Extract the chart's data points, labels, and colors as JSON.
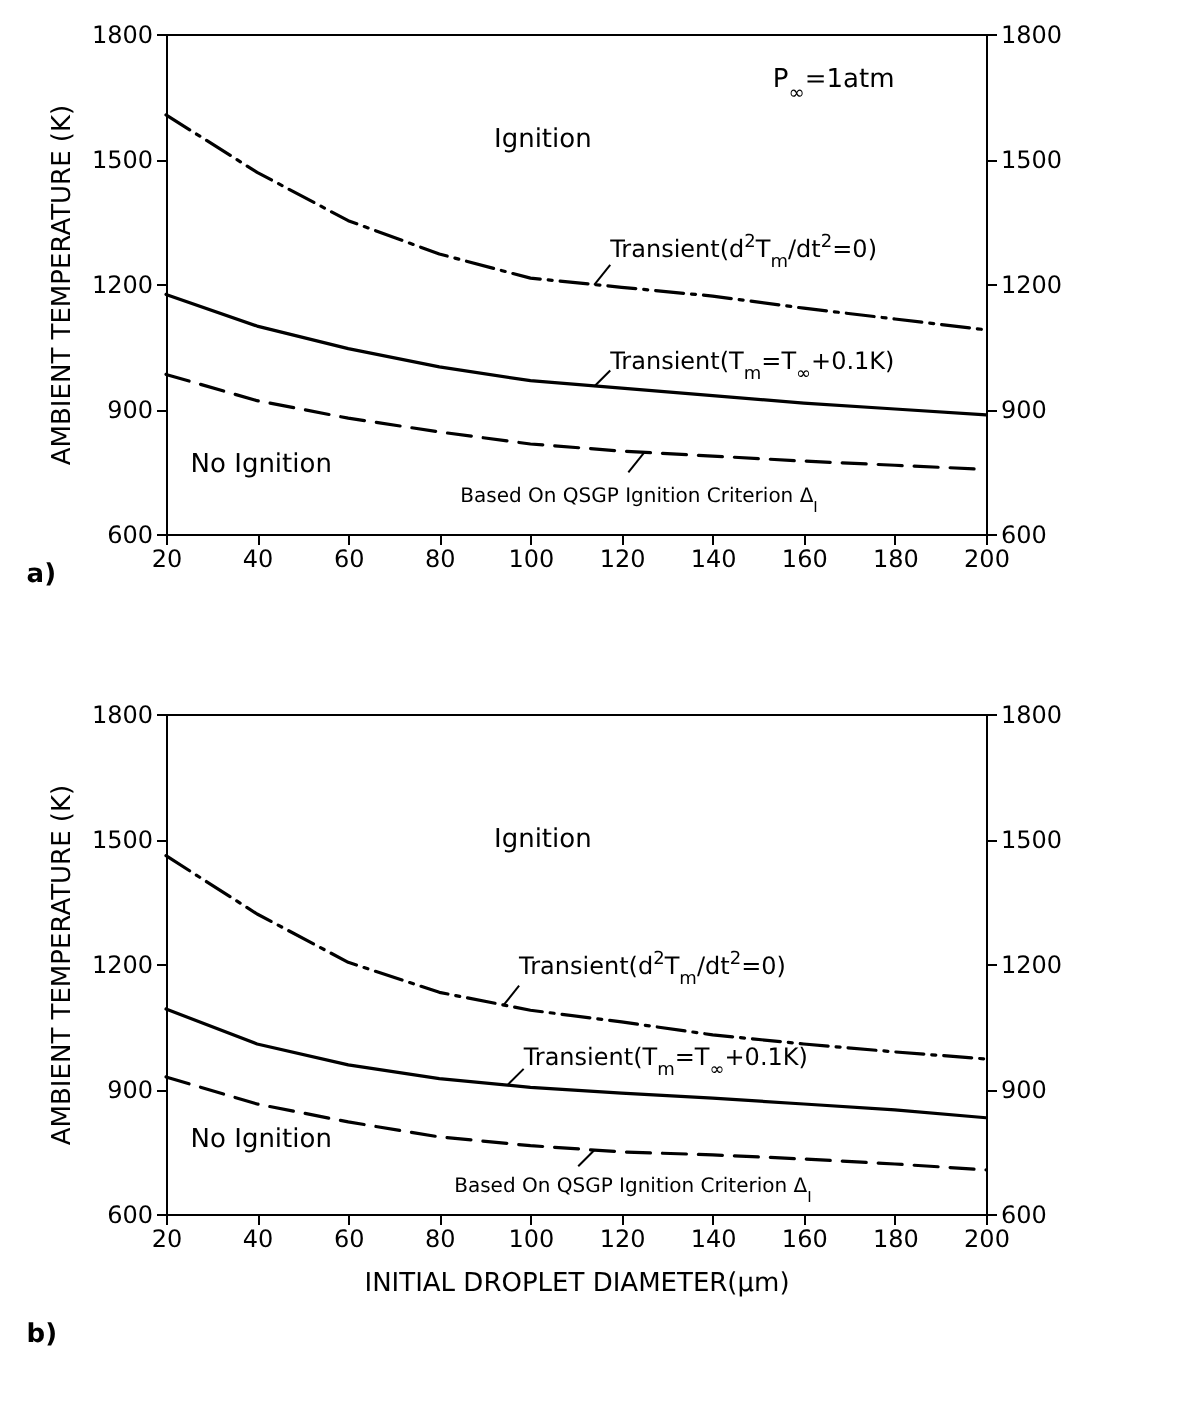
{
  "chart_data": [
    {
      "type": "line",
      "ylabel": "AMBIENT TEMPERATURE (K)",
      "x": [
        20,
        40,
        60,
        80,
        100,
        120,
        140,
        160,
        180,
        200
      ],
      "xlim": [
        20,
        200
      ],
      "xticks": [
        20,
        40,
        60,
        80,
        100,
        120,
        140,
        160,
        180,
        200
      ],
      "ylim": [
        600,
        1800
      ],
      "yticks": [
        600,
        900,
        1200,
        1500,
        1800
      ],
      "y2lim": [
        600,
        1800
      ],
      "y2ticks": [
        600,
        900,
        1200,
        1500,
        1800
      ],
      "series": [
        {
          "color": "#000000",
          "line_style": "dashdot",
          "values": [
            1606,
            1468,
            1352,
            1272,
            1214,
            1192,
            1171,
            1142,
            1116,
            1090
          ]
        },
        {
          "color": "#000000",
          "line_style": "solid",
          "values": [
            1175,
            1099,
            1045,
            1001,
            968,
            950,
            932,
            914,
            900,
            886
          ]
        },
        {
          "color": "#000000",
          "line_style": "dashed",
          "values": [
            983,
            920,
            878,
            845,
            816,
            799,
            787,
            775,
            765,
            755
          ]
        }
      ],
      "annotations": [
        "Ignition",
        "No Ignition",
        "P$_{∞}$=1atm",
        {
          "text": "Transient(d$^{2}$T$_{m}$/dt$^{2}$=0)",
          "x": 114,
          "y": 1198
        },
        {
          "text": "Transient(T$_{m}$=T$_{∞}$+0.1K)",
          "x": 114,
          "y": 954
        },
        {
          "text": "Based On QSGP Ignition Criterion Δ$_{I}$",
          "x": 125,
          "y": 796
        },
        "a)"
      ]
    },
    {
      "type": "line",
      "xlabel": "INITIAL DROPLET DIAMETER(μm)",
      "ylabel": "AMBIENT TEMPERATURE (K)",
      "x": [
        20,
        40,
        60,
        80,
        100,
        120,
        140,
        160,
        180,
        200
      ],
      "xlim": [
        20,
        200
      ],
      "xticks": [
        20,
        40,
        60,
        80,
        100,
        120,
        140,
        160,
        180,
        200
      ],
      "ylim": [
        600,
        1800
      ],
      "yticks": [
        600,
        900,
        1200,
        1500,
        1800
      ],
      "y2lim": [
        600,
        1800
      ],
      "y2ticks": [
        600,
        900,
        1200,
        1500,
        1800
      ],
      "series": [
        {
          "color": "#000000",
          "line_style": "dashdot",
          "values": [
            1460,
            1320,
            1204,
            1132,
            1089,
            1061,
            1030,
            1008,
            989,
            972
          ]
        },
        {
          "color": "#000000",
          "line_style": "solid",
          "values": [
            1092,
            1008,
            958,
            925,
            904,
            890,
            878,
            864,
            850,
            831
          ]
        },
        {
          "color": "#000000",
          "line_style": "dashed",
          "values": [
            929,
            864,
            821,
            785,
            764,
            749,
            742,
            732,
            720,
            706
          ]
        }
      ],
      "annotations": [
        "Ignition",
        "No Ignition",
        {
          "text": "Transient(d$^{2}$T$_{m}$/dt$^{2}$=0)",
          "x": 94,
          "y": 1100
        },
        {
          "text": "Transient(T$_{m}$=T$_{∞}$+0.1K)",
          "x": 95,
          "y": 910
        },
        {
          "text": "Based On QSGP Ignition Criterion Δ$_{I}$",
          "x": 114,
          "y": 753
        },
        "b)"
      ]
    }
  ]
}
